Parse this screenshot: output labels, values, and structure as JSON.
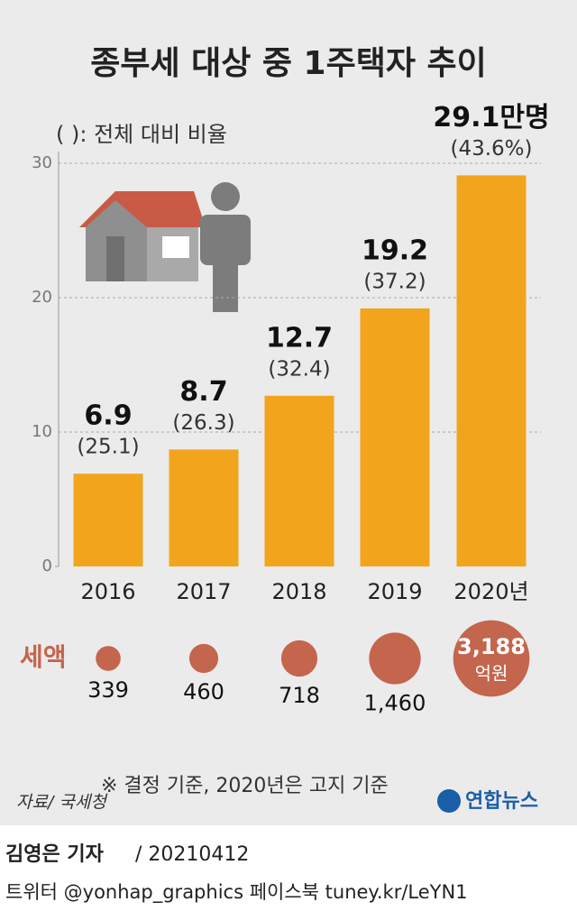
{
  "chart_data": {
    "type": "bar",
    "title": "종부세 대상 중 1주택자 추이",
    "note": "( ): 전체 대비 비율",
    "categories": [
      "2016",
      "2017",
      "2018",
      "2019",
      "2020년"
    ],
    "values": [
      6.9,
      8.7,
      12.7,
      19.2,
      29.1
    ],
    "value_labels": [
      "6.9",
      "8.7",
      "12.7",
      "19.2",
      "29.1만명"
    ],
    "share_values": [
      25.1,
      26.3,
      32.4,
      37.2,
      43.6
    ],
    "share_labels": [
      "(25.1)",
      "(26.3)",
      "(32.4)",
      "(37.2)",
      "(43.6%)"
    ],
    "color": "#f2a51c",
    "ylim": [
      0,
      30
    ],
    "yticks": [
      0,
      10,
      20,
      30
    ],
    "grid": true,
    "tax": {
      "label": "세액",
      "values": [
        339,
        460,
        718,
        1460,
        3188
      ],
      "value_labels": [
        "339",
        "460",
        "718",
        "1,460",
        "3,188"
      ],
      "unit": "억원",
      "color": "#c4654d"
    },
    "footnote": "※ 결정 기준, 2020년은 고지 기준",
    "source": "자료/ 국세청",
    "logo": "연합뉴스"
  },
  "byline": {
    "reporter": "김영은 기자",
    "date": "/ 20210412",
    "sns": "트위터 @yonhap_graphics  페이스북 tuney.kr/LeYN1"
  }
}
